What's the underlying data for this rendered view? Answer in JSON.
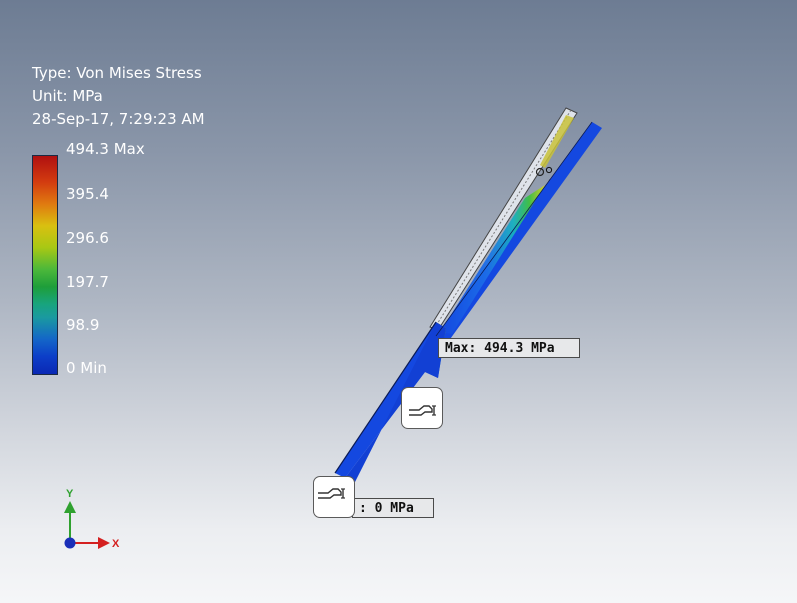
{
  "info": {
    "type": "Type: Von Mises Stress",
    "unit": "Unit: MPa",
    "timestamp": "28-Sep-17, 7:29:23 AM"
  },
  "legend": {
    "max_label": "494.3 Max",
    "ticks": [
      "395.4",
      "296.6",
      "197.7",
      "98.9"
    ],
    "min_label": "0 Min"
  },
  "probes": {
    "max_label": "Max: 494.3 MPa",
    "min_label": ": 0 MPa"
  },
  "triad": {
    "y_label": "Y",
    "x_label": "X"
  },
  "colors": {
    "y_axis": "#2fa12f",
    "x_axis": "#d42020",
    "origin": "#1a2fb8",
    "part_blue": "#1448e0"
  },
  "icons": [
    "probe-icon",
    "probe-icon"
  ]
}
